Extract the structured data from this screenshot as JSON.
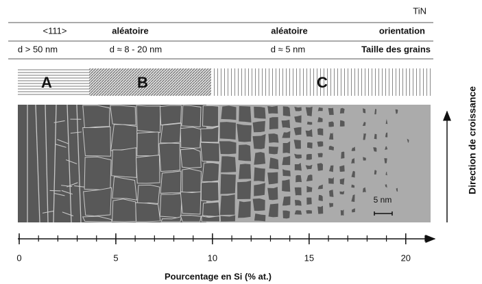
{
  "header": "TiN",
  "orientation_row": {
    "labels": [
      "<111>",
      "aléatoire",
      "aléatoire"
    ],
    "title": "orientation"
  },
  "grain_size_row": {
    "labels": [
      "d > 50 nm",
      "d ≈ 8 - 20 nm",
      "d ≈ 5 nm"
    ],
    "title": "Taille des grains"
  },
  "zones": [
    "A",
    "B",
    "C"
  ],
  "scale_bar": "5 nm",
  "axis": {
    "label": "Pourcentage en Si (% at.)",
    "xlim": [
      0,
      21
    ],
    "xticks": [
      0,
      5,
      10,
      15,
      20
    ]
  },
  "growth_direction": "Direction de croissance"
}
